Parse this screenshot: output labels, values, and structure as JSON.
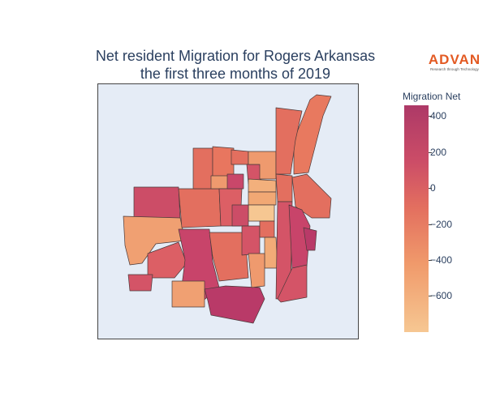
{
  "title": {
    "line1": "Net resident Migration for Rogers Arkansas",
    "line2": "the first three months of 2019"
  },
  "logo": {
    "name": "ADVAN",
    "tagline": "Research through Technology",
    "color": "#e35a23"
  },
  "colorbar": {
    "title": "Migration Net",
    "ticks": [
      "400",
      "200",
      "0",
      "−200",
      "−400",
      "−600"
    ],
    "range": [
      -790,
      470
    ],
    "colors": [
      "#ad3967",
      "#cc4d67",
      "#e36f5f",
      "#f09a6b",
      "#f6c792"
    ]
  },
  "map": {
    "background": "#e5ecf6",
    "border_color": "#444444"
  }
}
